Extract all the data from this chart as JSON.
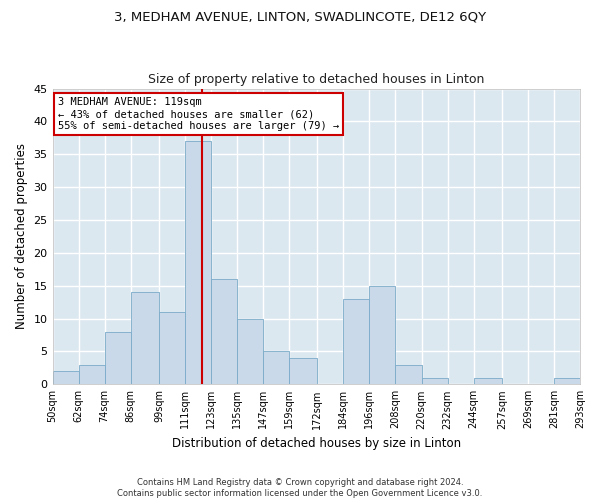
{
  "title": "3, MEDHAM AVENUE, LINTON, SWADLINCOTE, DE12 6QY",
  "subtitle": "Size of property relative to detached houses in Linton",
  "xlabel": "Distribution of detached houses by size in Linton",
  "ylabel": "Number of detached properties",
  "footer_line1": "Contains HM Land Registry data © Crown copyright and database right 2024.",
  "footer_line2": "Contains public sector information licensed under the Open Government Licence v3.0.",
  "annotation_line1": "3 MEDHAM AVENUE: 119sqm",
  "annotation_line2": "← 43% of detached houses are smaller (62)",
  "annotation_line3": "55% of semi-detached houses are larger (79) →",
  "subject_size": 119,
  "bar_color": "#c9d9ea",
  "bar_edge_color": "#7aaac8",
  "vline_color": "#cc0000",
  "annotation_box_color": "#cc0000",
  "fig_bg_color": "#ffffff",
  "ax_bg_color": "#dce8f0",
  "grid_color": "#ffffff",
  "ylim": [
    0,
    45
  ],
  "yticks": [
    0,
    5,
    10,
    15,
    20,
    25,
    30,
    35,
    40,
    45
  ],
  "bin_edges": [
    50,
    62,
    74,
    86,
    99,
    111,
    123,
    135,
    147,
    159,
    172,
    184,
    196,
    208,
    220,
    232,
    244,
    257,
    269,
    281,
    293
  ],
  "bin_labels": [
    "50sqm",
    "62sqm",
    "74sqm",
    "86sqm",
    "99sqm",
    "111sqm",
    "123sqm",
    "135sqm",
    "147sqm",
    "159sqm",
    "172sqm",
    "184sqm",
    "196sqm",
    "208sqm",
    "220sqm",
    "232sqm",
    "244sqm",
    "257sqm",
    "269sqm",
    "281sqm",
    "293sqm"
  ],
  "counts": [
    2,
    3,
    8,
    14,
    11,
    37,
    16,
    10,
    5,
    4,
    0,
    13,
    15,
    3,
    1,
    0,
    1,
    0,
    0,
    1
  ]
}
